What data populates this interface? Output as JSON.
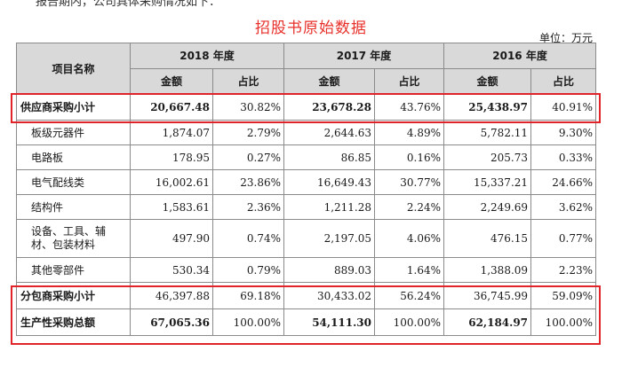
{
  "top_text": "报告期内，公司具体采购情况如下：",
  "title": "招股书原始数据",
  "unit": "单位：万元",
  "header": {
    "item_name": "项目名称",
    "years": [
      "2018 年度",
      "2017 年度",
      "2016 年度"
    ],
    "amount": "金额",
    "ratio": "占比"
  },
  "rows": [
    {
      "name": "供应商采购小计",
      "cells": [
        "20,667.48",
        "30.82%",
        "23,678.28",
        "43.76%",
        "25,438.97",
        "40.91%"
      ]
    },
    {
      "name": "板级元器件",
      "cells": [
        "1,874.07",
        "2.79%",
        "2,644.63",
        "4.89%",
        "5,782.11",
        "9.30%"
      ]
    },
    {
      "name": "电路板",
      "cells": [
        "178.95",
        "0.27%",
        "86.85",
        "0.16%",
        "205.73",
        "0.33%"
      ]
    },
    {
      "name": "电气配线类",
      "cells": [
        "16,002.61",
        "23.86%",
        "16,649.43",
        "30.77%",
        "15,337.21",
        "24.66%"
      ]
    },
    {
      "name": "结构件",
      "cells": [
        "1,583.61",
        "2.36%",
        "1,211.28",
        "2.24%",
        "2,249.69",
        "3.62%"
      ]
    },
    {
      "name": "设备、工具、辅材、包装材料",
      "cells": [
        "497.90",
        "0.74%",
        "2,197.05",
        "4.06%",
        "476.15",
        "0.77%"
      ]
    },
    {
      "name": "其他零部件",
      "cells": [
        "530.34",
        "0.79%",
        "889.03",
        "1.64%",
        "1,388.09",
        "2.23%"
      ]
    },
    {
      "name": "分包商采购小计",
      "cells": [
        "46,397.88",
        "69.18%",
        "30,433.02",
        "56.24%",
        "36,745.99",
        "59.09%"
      ]
    },
    {
      "name": "生产性采购总额",
      "cells": [
        "67,065.36",
        "100.00%",
        "54,111.30",
        "100.00%",
        "62,184.97",
        "100.00%"
      ]
    }
  ],
  "colors": {
    "title_red": "#e8302b",
    "box_red": "#e0242a",
    "header_gray": "#d9d9d9"
  }
}
